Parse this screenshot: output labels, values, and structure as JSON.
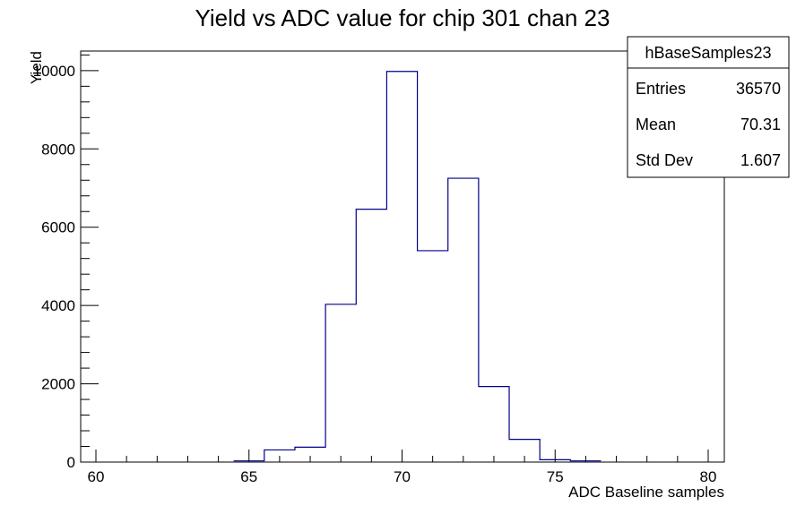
{
  "chart_data": {
    "type": "histogram",
    "title": "Yield vs ADC value for chip 301 chan 23",
    "xlabel": "ADC Baseline samples",
    "ylabel": "Yield",
    "xlim": [
      59.5,
      80.5
    ],
    "ylim": [
      0,
      10500
    ],
    "x_ticks": [
      60,
      65,
      70,
      75,
      80
    ],
    "y_ticks": [
      0,
      2000,
      4000,
      6000,
      8000,
      10000
    ],
    "bin_width": 1,
    "bin_low_edges": [
      64.5,
      65.5,
      66.5,
      67.5,
      68.5,
      69.5,
      70.5,
      71.5,
      72.5,
      73.5,
      74.5,
      75.5
    ],
    "values": [
      30,
      310,
      380,
      4030,
      6460,
      9980,
      5400,
      7250,
      1930,
      580,
      60,
      30
    ],
    "line_color": "#00008b",
    "stats_box": {
      "name": "hBaseSamples23",
      "rows": [
        {
          "label": "Entries",
          "value": "36570"
        },
        {
          "label": "Mean",
          "value": "70.31"
        },
        {
          "label": "Std Dev",
          "value": "1.607"
        }
      ]
    }
  }
}
